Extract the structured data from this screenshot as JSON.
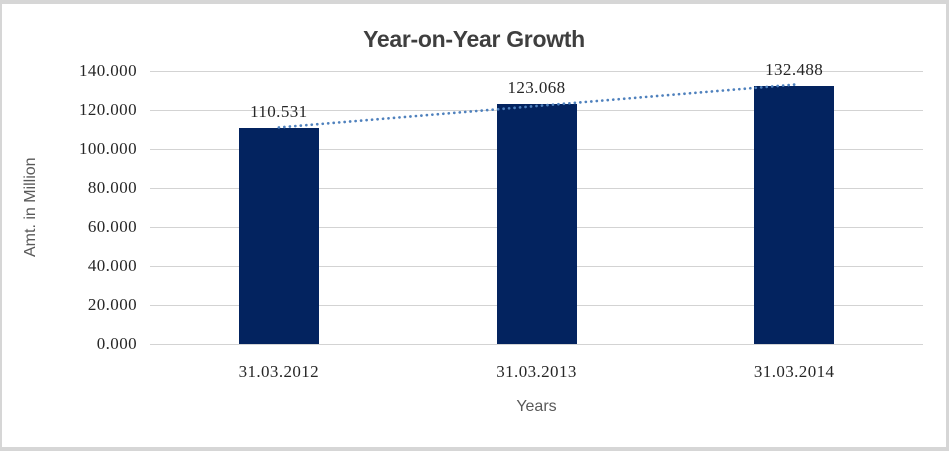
{
  "chart_data": {
    "type": "bar",
    "title": "Year-on-Year Growth",
    "xlabel": "Years",
    "ylabel": "Amt. in Million",
    "categories": [
      "31.03.2012",
      "31.03.2013",
      "31.03.2014"
    ],
    "values": [
      110.531,
      123.068,
      132.488
    ],
    "data_labels": [
      "110.531",
      "123.068",
      "132.488"
    ],
    "ytick_labels": [
      "0.000",
      "20.000",
      "40.000",
      "60.000",
      "80.000",
      "100.000",
      "120.000",
      "140.000"
    ],
    "ytick_step": 20,
    "ylim": [
      0,
      140
    ],
    "grid": true,
    "legend": false,
    "trendline": {
      "type": "linear",
      "style": "dotted"
    },
    "colors": {
      "bar": "#03235F",
      "trendline": "#4F81BD",
      "gridline": "#D3D3D3",
      "title": "#3F3F3F",
      "axis_title": "#595959",
      "tick_label": "#262626",
      "data_label": "#262626",
      "frame": "#D6D6D6",
      "background": "#FFFFFF"
    }
  }
}
